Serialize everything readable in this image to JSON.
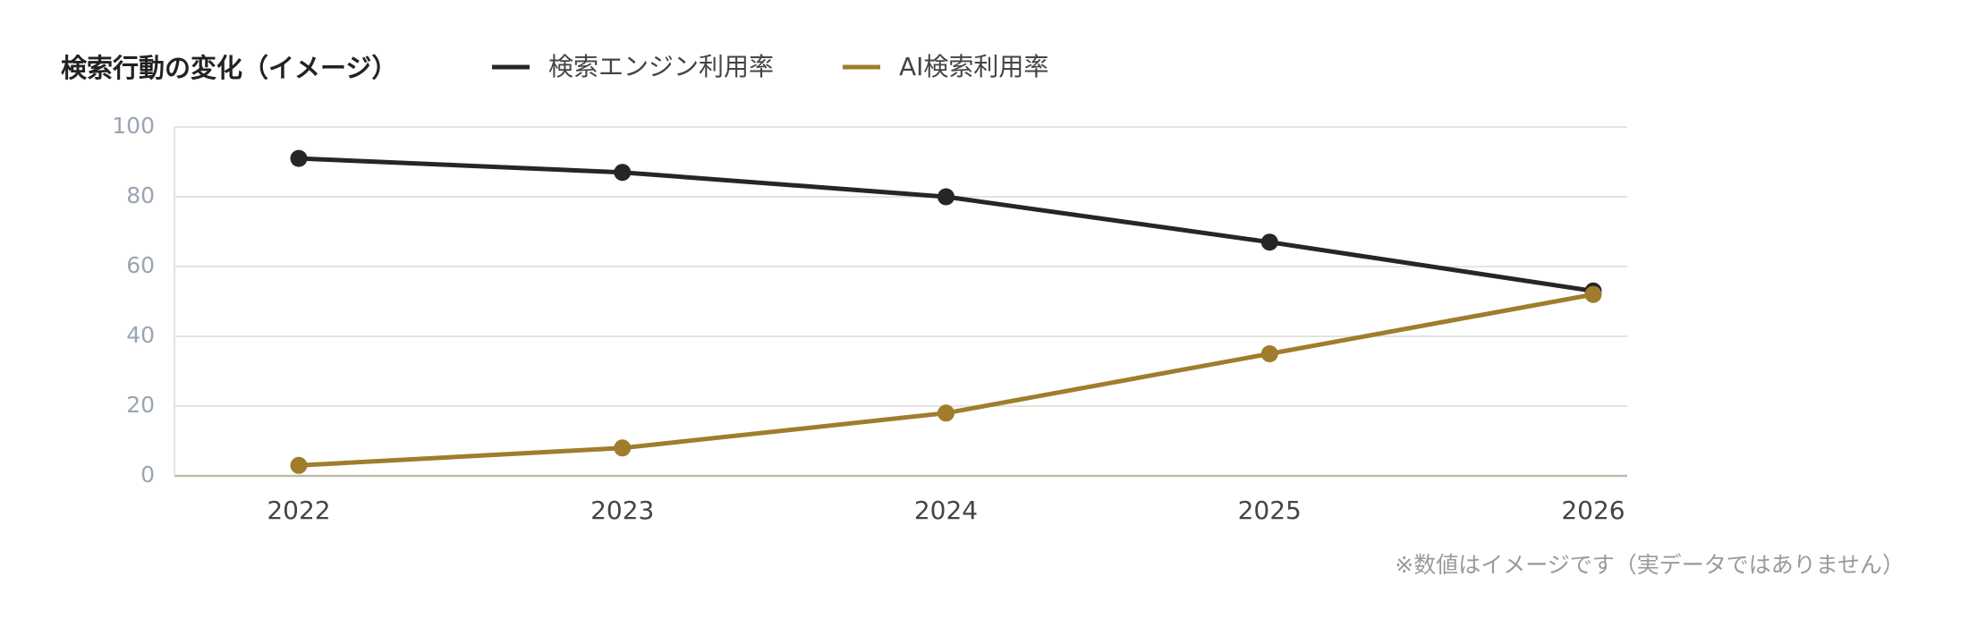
{
  "chart_data": {
    "type": "line",
    "title": "検索行動の変化（イメージ）",
    "categories": [
      "2022",
      "2023",
      "2024",
      "2025",
      "2026"
    ],
    "series": [
      {
        "name": "検索エンジン利用率",
        "color": "#262626",
        "values": [
          91,
          87,
          80,
          67,
          53
        ]
      },
      {
        "name": "AI検索利用率",
        "color": "#a07d2c",
        "values": [
          3,
          8,
          18,
          35,
          52
        ]
      }
    ],
    "ylim": [
      0,
      100
    ],
    "yticks": [
      0,
      20,
      40,
      60,
      80,
      100
    ],
    "grid": true,
    "note": "※数値はイメージです（実データではありません）"
  }
}
